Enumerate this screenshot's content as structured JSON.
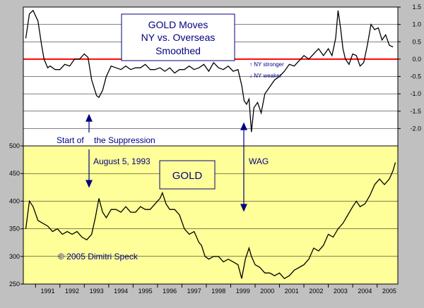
{
  "chart_data": [
    {
      "type": "line",
      "title": "GOLD Moves",
      "subtitle": [
        "NY vs. Overseas",
        "Smoothed"
      ],
      "y_axis_side": "right",
      "ylim": [
        -2.5,
        1.5
      ],
      "yticks": [
        1.5,
        1.0,
        0.5,
        0.0,
        -0.5,
        -1.0,
        -1.5,
        -2.0
      ],
      "ytick_labels": [
        "1.5",
        "1.0",
        "0.5",
        "0.0",
        "-0.5",
        "-1.0",
        "-1.5",
        "-2.0"
      ],
      "reference_line": 0.0,
      "reference_line_color": "#ff0000",
      "annotations": [
        "↑ NY stronger",
        "↓ NY weaker"
      ],
      "grid": true,
      "series": [
        {
          "x": [
            1990.6,
            1990.75,
            1990.9,
            1991.1,
            1991.25,
            1991.35,
            1991.5,
            1991.6,
            1991.8,
            1992.0,
            1992.2,
            1992.4,
            1992.6,
            1992.8,
            1993.0,
            1993.15,
            1993.3,
            1993.5,
            1993.6,
            1993.75,
            1993.9,
            1994.1,
            1994.3,
            1994.5,
            1994.7,
            1994.9,
            1995.1,
            1995.3,
            1995.5,
            1995.7,
            1995.9,
            1996.1,
            1996.3,
            1996.5,
            1996.7,
            1996.9,
            1997.1,
            1997.3,
            1997.5,
            1997.7,
            1997.9,
            1998.1,
            1998.3,
            1998.5,
            1998.7,
            1998.9,
            1999.1,
            1999.3,
            1999.45,
            1999.55,
            1999.65,
            1999.75,
            1999.85,
            1999.95,
            2000.1,
            2000.25,
            2000.4,
            2000.6,
            2000.8,
            2001.0,
            2001.2,
            2001.4,
            2001.6,
            2001.8,
            2002.0,
            2002.2,
            2002.4,
            2002.6,
            2002.8,
            2003.0,
            2003.15,
            2003.3,
            2003.4,
            2003.5,
            2003.6,
            2003.7,
            2003.85,
            2004.0,
            2004.15,
            2004.3,
            2004.45,
            2004.6,
            2004.75,
            2004.9,
            2005.05,
            2005.2,
            2005.35,
            2005.5,
            2005.65
          ],
          "y": [
            0.6,
            1.3,
            1.4,
            1.1,
            0.4,
            0.0,
            -0.25,
            -0.2,
            -0.3,
            -0.3,
            -0.15,
            -0.2,
            0.0,
            0.0,
            0.15,
            0.05,
            -0.6,
            -1.05,
            -1.1,
            -0.9,
            -0.5,
            -0.2,
            -0.25,
            -0.3,
            -0.2,
            -0.3,
            -0.25,
            -0.25,
            -0.15,
            -0.3,
            -0.3,
            -0.25,
            -0.35,
            -0.25,
            -0.4,
            -0.3,
            -0.3,
            -0.2,
            -0.3,
            -0.25,
            -0.15,
            -0.35,
            -0.1,
            -0.25,
            -0.3,
            -0.2,
            -0.35,
            -0.3,
            -0.75,
            -1.2,
            -1.3,
            -1.15,
            -2.1,
            -1.4,
            -1.25,
            -1.55,
            -1.0,
            -0.8,
            -0.6,
            -0.5,
            -0.35,
            -0.15,
            -0.2,
            -0.05,
            0.1,
            0.0,
            0.15,
            0.3,
            0.1,
            0.3,
            0.1,
            0.6,
            1.4,
            0.9,
            0.3,
            0.0,
            -0.15,
            0.15,
            0.1,
            -0.2,
            -0.1,
            0.4,
            1.0,
            0.85,
            0.9,
            0.55,
            0.7,
            0.4,
            0.35
          ]
        }
      ]
    },
    {
      "type": "line",
      "title": "GOLD",
      "y_axis_side": "left",
      "ylim": [
        250,
        500
      ],
      "yticks": [
        250,
        300,
        350,
        400,
        450,
        500
      ],
      "ytick_labels": [
        "250",
        "300",
        "350",
        "400",
        "450",
        "500"
      ],
      "xtick_labels": [
        "1991",
        "1992",
        "1993",
        "1994",
        "1995",
        "1996",
        "1997",
        "1998",
        "1999",
        "2000",
        "2001",
        "2002",
        "2003",
        "2004",
        "2005"
      ],
      "background": "#ffff99",
      "grid": true,
      "series": [
        {
          "x": [
            1990.6,
            1990.75,
            1990.9,
            1991.1,
            1991.3,
            1991.5,
            1991.7,
            1991.9,
            1992.1,
            1992.3,
            1992.5,
            1992.7,
            1992.9,
            1993.1,
            1993.3,
            1993.45,
            1993.6,
            1993.75,
            1993.9,
            1994.1,
            1994.3,
            1994.5,
            1994.7,
            1994.9,
            1995.1,
            1995.3,
            1995.5,
            1995.7,
            1995.9,
            1996.1,
            1996.2,
            1996.35,
            1996.5,
            1996.7,
            1996.9,
            1997.1,
            1997.3,
            1997.5,
            1997.7,
            1997.8,
            1997.95,
            1998.1,
            1998.3,
            1998.5,
            1998.7,
            1998.9,
            1999.1,
            1999.3,
            1999.45,
            1999.6,
            1999.75,
            1999.85,
            2000.0,
            2000.2,
            2000.4,
            2000.6,
            2000.8,
            2001.0,
            2001.2,
            2001.4,
            2001.6,
            2001.8,
            2002.0,
            2002.2,
            2002.4,
            2002.6,
            2002.8,
            2003.0,
            2003.2,
            2003.4,
            2003.6,
            2003.8,
            2004.0,
            2004.15,
            2004.3,
            2004.5,
            2004.7,
            2004.9,
            2005.1,
            2005.3,
            2005.5,
            2005.65,
            2005.75
          ],
          "y": [
            350,
            400,
            390,
            365,
            360,
            355,
            345,
            350,
            340,
            345,
            340,
            345,
            335,
            330,
            340,
            370,
            405,
            380,
            370,
            385,
            385,
            380,
            390,
            380,
            380,
            390,
            385,
            385,
            395,
            405,
            415,
            395,
            385,
            385,
            375,
            350,
            340,
            345,
            325,
            320,
            300,
            295,
            300,
            300,
            290,
            295,
            290,
            285,
            260,
            295,
            315,
            300,
            285,
            280,
            270,
            270,
            265,
            270,
            260,
            265,
            275,
            280,
            285,
            295,
            315,
            310,
            320,
            340,
            335,
            350,
            360,
            375,
            390,
            400,
            390,
            395,
            410,
            430,
            440,
            430,
            440,
            455,
            470
          ]
        }
      ]
    }
  ],
  "labels": {
    "top_title_line1": "GOLD Moves",
    "top_title_line2": "NY vs. Overseas",
    "top_title_line3": "Smoothed",
    "ny_stronger": "↑ NY stronger",
    "ny_weaker": "↓ NY weaker",
    "start_of": "Start of",
    "the_suppression": "the Suppression",
    "august_date": "August 5, 1993",
    "gold_box": "GOLD",
    "wag": "WAG",
    "copyright": "© 2005 Dimitri Speck"
  },
  "colors": {
    "frame_bg": "#c0c0c0",
    "top_bg": "#ffffff",
    "bottom_bg": "#ffff99",
    "line": "#000000",
    "zero_line": "#ff0000",
    "annotation_text": "#000080"
  }
}
